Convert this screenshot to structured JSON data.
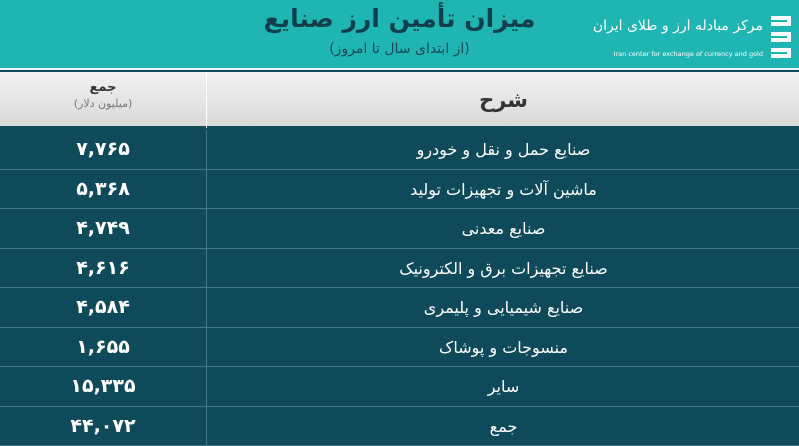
{
  "header": {
    "title": "میزان تأمین ارز صنایع",
    "subtitle": "(از ابتدای سال تا امروز)",
    "logo": {
      "fa": "مرکز مبادله ارز و طلای ایران",
      "en": "Iran center for exchange of currency and gold"
    },
    "colors": {
      "header_bg": "#1fb5b3",
      "table_bg": "#0e4a5a"
    }
  },
  "table": {
    "columns": {
      "value": "جمع",
      "value_unit": "(میلیون دلار)",
      "description": "شرح"
    },
    "rows": [
      {
        "description": "صنایع حمل و نقل و خودرو",
        "value": "۷,۷۶۵"
      },
      {
        "description": "ماشین آلات و تجهیزات تولید",
        "value": "۵,۳۶۸"
      },
      {
        "description": "صنایع معدنی",
        "value": "۴,۷۴۹"
      },
      {
        "description": "صنایع تجهیزات برق و الکترونیک",
        "value": "۴,۶۱۶"
      },
      {
        "description": "صنایع شیمیایی و پلیمری",
        "value": "۴,۵۸۴"
      },
      {
        "description": "منسوجات و پوشاک",
        "value": "۱,۶۵۵"
      },
      {
        "description": "سایر",
        "value": "۱۵,۳۳۵"
      },
      {
        "description": "جمع",
        "value": "۴۴,۰۷۲"
      }
    ]
  }
}
